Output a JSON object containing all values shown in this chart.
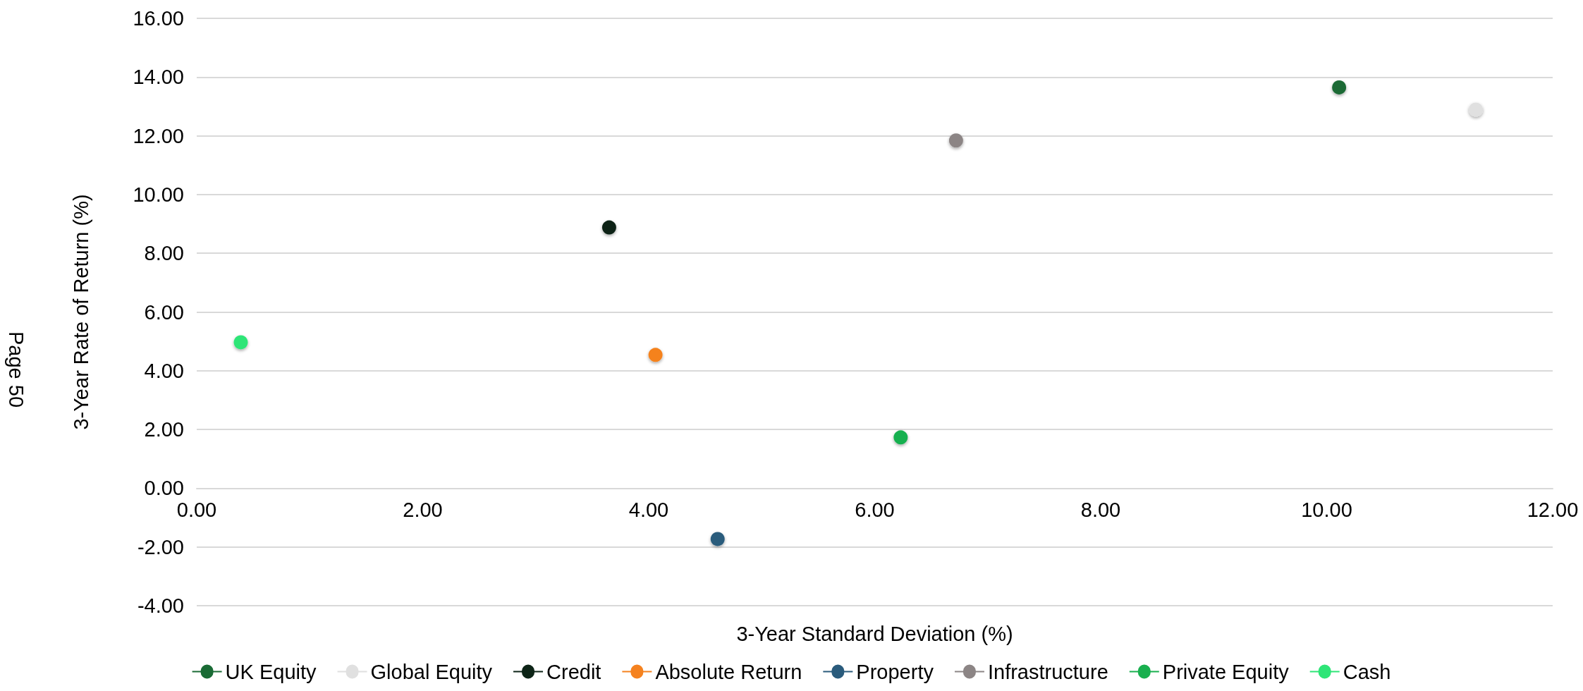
{
  "chart_data": {
    "type": "scatter",
    "xlabel": "3-Year Standard Deviation (%)",
    "ylabel": "3-Year Rate of Return (%)",
    "annotations": [
      "Page 50"
    ],
    "xlim": [
      0,
      12
    ],
    "xticks": [
      {
        "value": 0,
        "label": "0.00"
      },
      {
        "value": 2,
        "label": "2.00"
      },
      {
        "value": 4,
        "label": "4.00"
      },
      {
        "value": 6,
        "label": "6.00"
      },
      {
        "value": 8,
        "label": "8.00"
      },
      {
        "value": 10,
        "label": "10.00"
      },
      {
        "value": 12,
        "label": "12.00"
      }
    ],
    "ylim": [
      -4,
      16
    ],
    "yticks": [
      {
        "value": -4,
        "label": "-4.00"
      },
      {
        "value": -2,
        "label": "-2.00"
      },
      {
        "value": 0,
        "label": "0.00"
      },
      {
        "value": 2,
        "label": "2.00"
      },
      {
        "value": 4,
        "label": "4.00"
      },
      {
        "value": 6,
        "label": "6.00"
      },
      {
        "value": 8,
        "label": "8.00"
      },
      {
        "value": 10,
        "label": "10.00"
      },
      {
        "value": 12,
        "label": "12.00"
      },
      {
        "value": 14,
        "label": "14.00"
      },
      {
        "value": 16,
        "label": "16.00"
      }
    ],
    "grid": "y",
    "legend": "bottom",
    "marker": "circle",
    "series": [
      {
        "name": "UK Equity",
        "color": "#1a6b35",
        "x": [
          10.11
        ],
        "values": [
          13.65
        ]
      },
      {
        "name": "Global Equity",
        "color": "#e0e0e0",
        "x": [
          11.32
        ],
        "values": [
          12.89
        ]
      },
      {
        "name": "Credit",
        "color": "#0d2417",
        "x": [
          3.65
        ],
        "values": [
          8.88
        ]
      },
      {
        "name": "Absolute Return",
        "color": "#f5821f",
        "x": [
          4.06
        ],
        "values": [
          4.54
        ]
      },
      {
        "name": "Property",
        "color": "#2a5b7c",
        "x": [
          4.61
        ],
        "values": [
          -1.73
        ]
      },
      {
        "name": "Infrastructure",
        "color": "#8c8585",
        "x": [
          6.72
        ],
        "values": [
          11.84
        ]
      },
      {
        "name": "Private Equity",
        "color": "#19b04f",
        "x": [
          6.23
        ],
        "values": [
          1.73
        ]
      },
      {
        "name": "Cash",
        "color": "#2ee577",
        "x": [
          0.39
        ],
        "values": [
          4.97
        ]
      }
    ]
  }
}
